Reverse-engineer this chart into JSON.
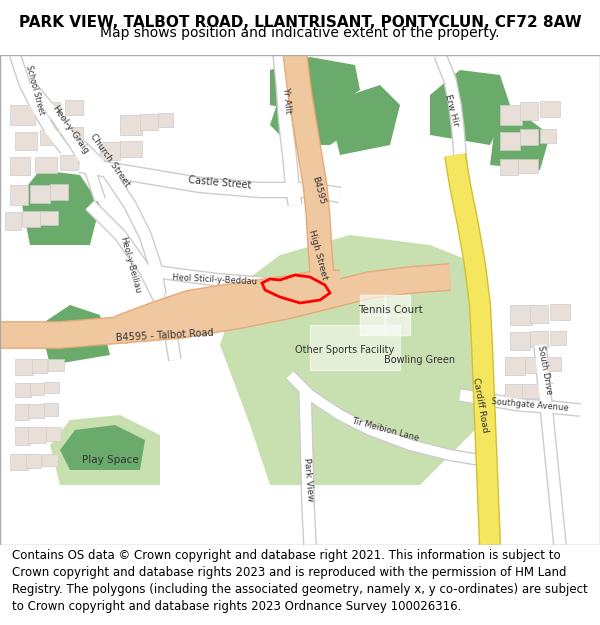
{
  "title_line1": "PARK VIEW, TALBOT ROAD, LLANTRISANT, PONTYCLUN, CF72 8AW",
  "title_line2": "Map shows position and indicative extent of the property.",
  "footer": "Contains OS data © Crown copyright and database right 2021. This information is subject to Crown copyright and database rights 2023 and is reproduced with the permission of HM Land Registry. The polygons (including the associated geometry, namely x, y co-ordinates) are subject to Crown copyright and database rights 2023 Ordnance Survey 100026316.",
  "road_salmon": "#f0c8a0",
  "road_salmon_border": "#e8a878",
  "road_yellow": "#f5e660",
  "road_yellow_border": "#d4c030",
  "road_white": "#ffffff",
  "road_white_border": "#cccccc",
  "green_light": "#c8e0b0",
  "green_dark": "#6aaa6a",
  "building_fill": "#e8e0d8",
  "building_stroke": "#cccccc",
  "red_plot": "#ff0000",
  "map_bg": "#f5f3f0",
  "title_fontsize": 11,
  "subtitle_fontsize": 10,
  "footer_fontsize": 8.5,
  "map_border_color": "#aaaaaa"
}
